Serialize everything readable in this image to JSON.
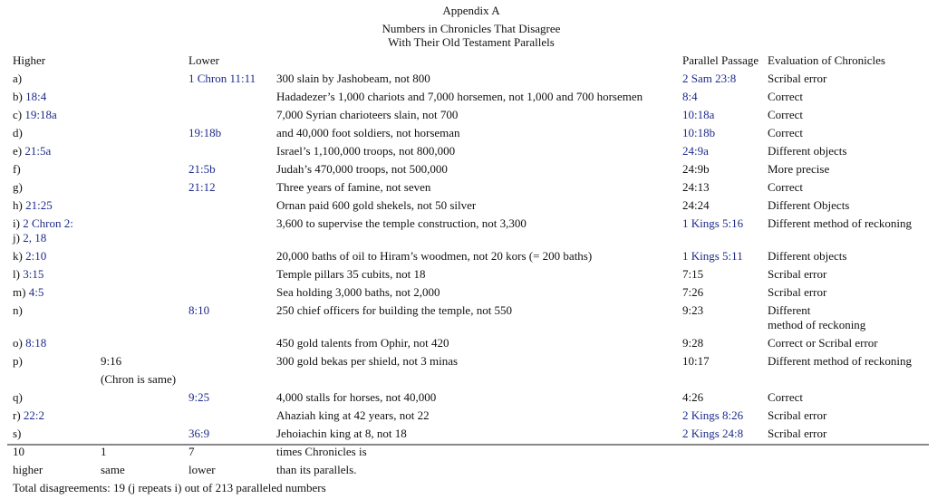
{
  "header": {
    "title": "Appendix A",
    "subtitle_1": "Numbers in Chronicles That Disagree",
    "subtitle_2": "With Their Old Testament Parallels"
  },
  "table": {
    "columns": {
      "higher": "Higher",
      "lower": "Lower",
      "parallel": "Parallel Passage",
      "evaluation": "Evaluation of Chronicles"
    },
    "rows": [
      {
        "label": "a)",
        "lower": "1 Chron 11:11",
        "passage": "300 slain by Jashobeam, not 800",
        "parallel": "2 Sam 23:8",
        "evaluation": "Scribal error"
      },
      {
        "label": "b)",
        "higher": "18:4",
        "passage": "Hadadezer’s 1,000 chariots and 7,000 horsemen, not 1,000 and 700 horsemen",
        "parallel": "8:4",
        "evaluation": "Correct"
      },
      {
        "label": "c)",
        "higher": "19:18a",
        "passage": "7,000 Syrian charioteers slain, not 700",
        "parallel": "10:18a",
        "evaluation": "Correct"
      },
      {
        "label": "d)",
        "lower": "19:18b",
        "passage": "and 40,000 foot soldiers, not horseman",
        "parallel": "10:18b",
        "evaluation": "Correct"
      },
      {
        "label": "e)",
        "higher": "21:5a",
        "passage": "Israel’s 1,100,000 troops, not 800,000",
        "parallel": "24:9a",
        "evaluation": "Different objects"
      },
      {
        "label": "f)",
        "lower": "21:5b",
        "passage": "Judah’s 470,000 troops, not 500,000",
        "parallel": "24:9b",
        "evaluation": "More precise"
      },
      {
        "label": "g)",
        "lower": "21:12",
        "passage": "Three years of famine, not seven",
        "parallel": "24:13",
        "evaluation": "Correct"
      },
      {
        "label": "h)",
        "higher": "21:25",
        "passage": "Ornan paid 600 gold shekels, not 50 silver",
        "parallel": "24:24",
        "evaluation": "Different Objects"
      },
      {
        "label": "i)",
        "higher": "2 Chron 2:",
        "passage": "3,600 to supervise the temple construction, not 3,300",
        "parallel": "1 Kings 5:16",
        "evaluation": "Different method of reckoning"
      },
      {
        "label": "j)",
        "higher": "2, 18"
      },
      {
        "label": "k)",
        "higher": "2:10",
        "passage": "20,000 baths of oil to Hiram’s woodmen, not 20 kors (= 200 baths)",
        "parallel": "1 Kings 5:11",
        "evaluation": "Different objects"
      },
      {
        "label": "l)",
        "higher": "3:15",
        "passage": "Temple pillars 35 cubits, not 18",
        "parallel": "7:15",
        "evaluation": "Scribal error"
      },
      {
        "label": "m)",
        "higher": "4:5",
        "passage": "Sea holding 3,000 baths, not 2,000",
        "parallel": "7:26",
        "evaluation": "Scribal error"
      },
      {
        "label": "n)",
        "lower": "8:10",
        "passage": "250 chief officers for building the temple, not 550",
        "parallel": "9:23",
        "evaluation": [
          "Different",
          "method of reckoning"
        ]
      },
      {
        "label": "o)",
        "higher": "8:18",
        "passage": "450 gold talents from Ophir, not 420",
        "parallel": "9:28",
        "evaluation": "Correct or Scribal error"
      },
      {
        "label": "p)",
        "same": [
          "9:16",
          "(Chron is same)"
        ],
        "passage": "300 gold bekas per shield, not 3 minas",
        "parallel": "10:17",
        "evaluation": "Different method of reckoning"
      },
      {
        "label": "q)",
        "lower": "9:25",
        "passage": "4,000 stalls for horses, not 40,000",
        "parallel": "4:26",
        "evaluation": "Correct"
      },
      {
        "label": "r)",
        "higher": "22:2",
        "passage": "Ahaziah king at 42 years, not 22",
        "parallel": "2 Kings 8:26",
        "evaluation": "Scribal error"
      },
      {
        "label": "s)",
        "lower": "36:9",
        "passage": "Jehoiachin king at 8, not 18",
        "parallel": "2 Kings 24:8",
        "evaluation": "Scribal error"
      }
    ],
    "totals": [
      {
        "higher": "10",
        "same": "1",
        "lower": "7",
        "passage": "times Chronicles is"
      },
      {
        "higher": "higher",
        "same": "same",
        "lower": "lower",
        "passage": "than its parallels."
      }
    ]
  },
  "footer": "Total disagreements: 19 (j repeats i) out of 213 paralleled numbers"
}
